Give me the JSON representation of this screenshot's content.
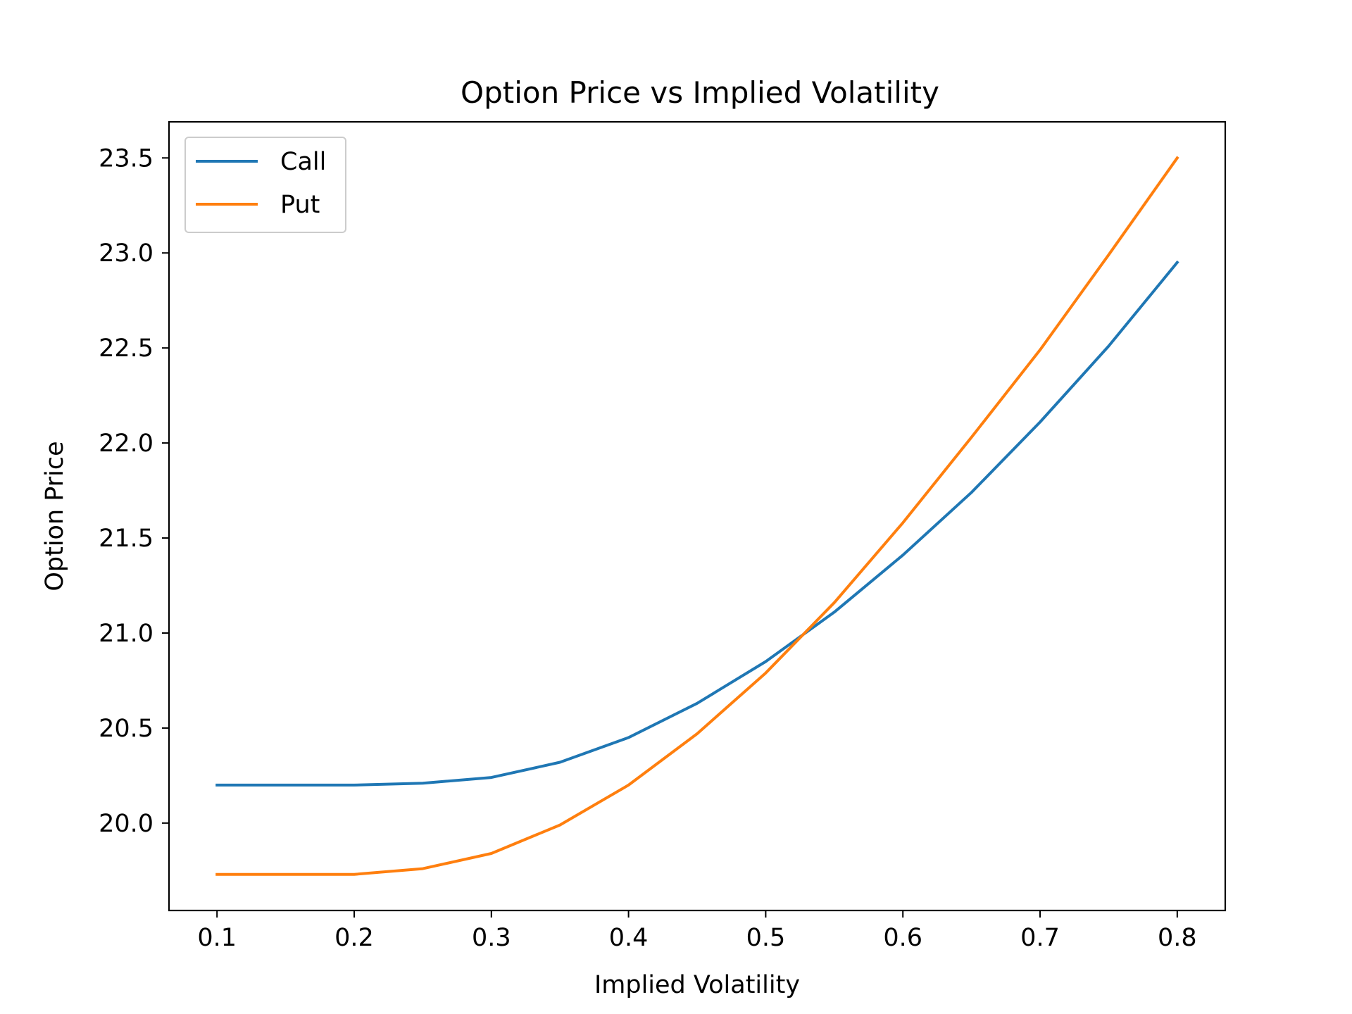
{
  "chart_data": {
    "type": "line",
    "title": "Option Price vs Implied Volatility",
    "xlabel": "Implied Volatility",
    "ylabel": "Option Price",
    "xlim": [
      0.065,
      0.835
    ],
    "ylim": [
      19.54,
      23.69
    ],
    "xticks": [
      0.1,
      0.2,
      0.3,
      0.4,
      0.5,
      0.6,
      0.7,
      0.8
    ],
    "xtick_labels": [
      "0.1",
      "0.2",
      "0.3",
      "0.4",
      "0.5",
      "0.6",
      "0.7",
      "0.8"
    ],
    "yticks": [
      20.0,
      20.5,
      21.0,
      21.5,
      22.0,
      22.5,
      23.0,
      23.5
    ],
    "ytick_labels": [
      "20.0",
      "20.5",
      "21.0",
      "21.5",
      "22.0",
      "22.5",
      "23.0",
      "23.5"
    ],
    "grid": false,
    "legend_position": "upper-left",
    "x": [
      0.1,
      0.15,
      0.2,
      0.25,
      0.3,
      0.35,
      0.4,
      0.45,
      0.5,
      0.55,
      0.6,
      0.65,
      0.7,
      0.75,
      0.8
    ],
    "series": [
      {
        "name": "Call",
        "color": "#1f77b4",
        "values": [
          20.2,
          20.2,
          20.2,
          20.21,
          20.24,
          20.32,
          20.45,
          20.63,
          20.85,
          21.11,
          21.41,
          21.74,
          22.11,
          22.51,
          22.95
        ]
      },
      {
        "name": "Put",
        "color": "#ff7f0e",
        "values": [
          19.73,
          19.73,
          19.73,
          19.76,
          19.84,
          19.99,
          20.2,
          20.47,
          20.79,
          21.16,
          21.58,
          22.03,
          22.49,
          22.99,
          23.5
        ]
      }
    ]
  }
}
